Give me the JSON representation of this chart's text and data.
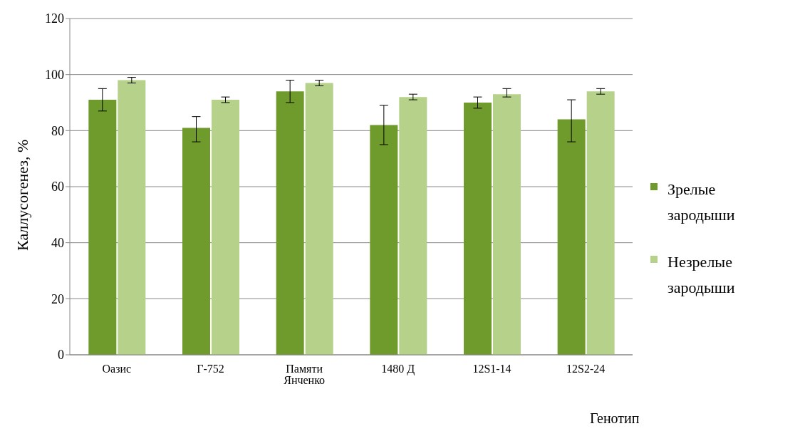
{
  "chart_data": {
    "type": "bar",
    "ylabel": "Каллусогенез, %",
    "xlabel": "Генотип",
    "categories": [
      "Оазис",
      "Г-752",
      "Памяти Янченко",
      "1480 Д",
      "12S1-14",
      "12S2-24"
    ],
    "series": [
      {
        "name": "Зрелые зародыши",
        "color": "#6f9a2c",
        "values": [
          91,
          81,
          94,
          82,
          90,
          84
        ],
        "errors": [
          [
            87,
            95
          ],
          [
            76,
            85
          ],
          [
            90,
            98
          ],
          [
            75,
            89
          ],
          [
            88,
            92
          ],
          [
            76,
            91
          ]
        ]
      },
      {
        "name": "Незрелые зародыши",
        "color": "#b5d18a",
        "values": [
          98,
          91,
          97,
          92,
          93,
          94
        ],
        "errors": [
          [
            97,
            99
          ],
          [
            90,
            92
          ],
          [
            96,
            98
          ],
          [
            91,
            93
          ],
          [
            92,
            95
          ],
          [
            93,
            95
          ]
        ]
      }
    ],
    "ylim": [
      0,
      120
    ],
    "yticks": [
      0,
      20,
      40,
      60,
      80,
      100,
      120
    ],
    "grid": "y",
    "legend": "right"
  }
}
